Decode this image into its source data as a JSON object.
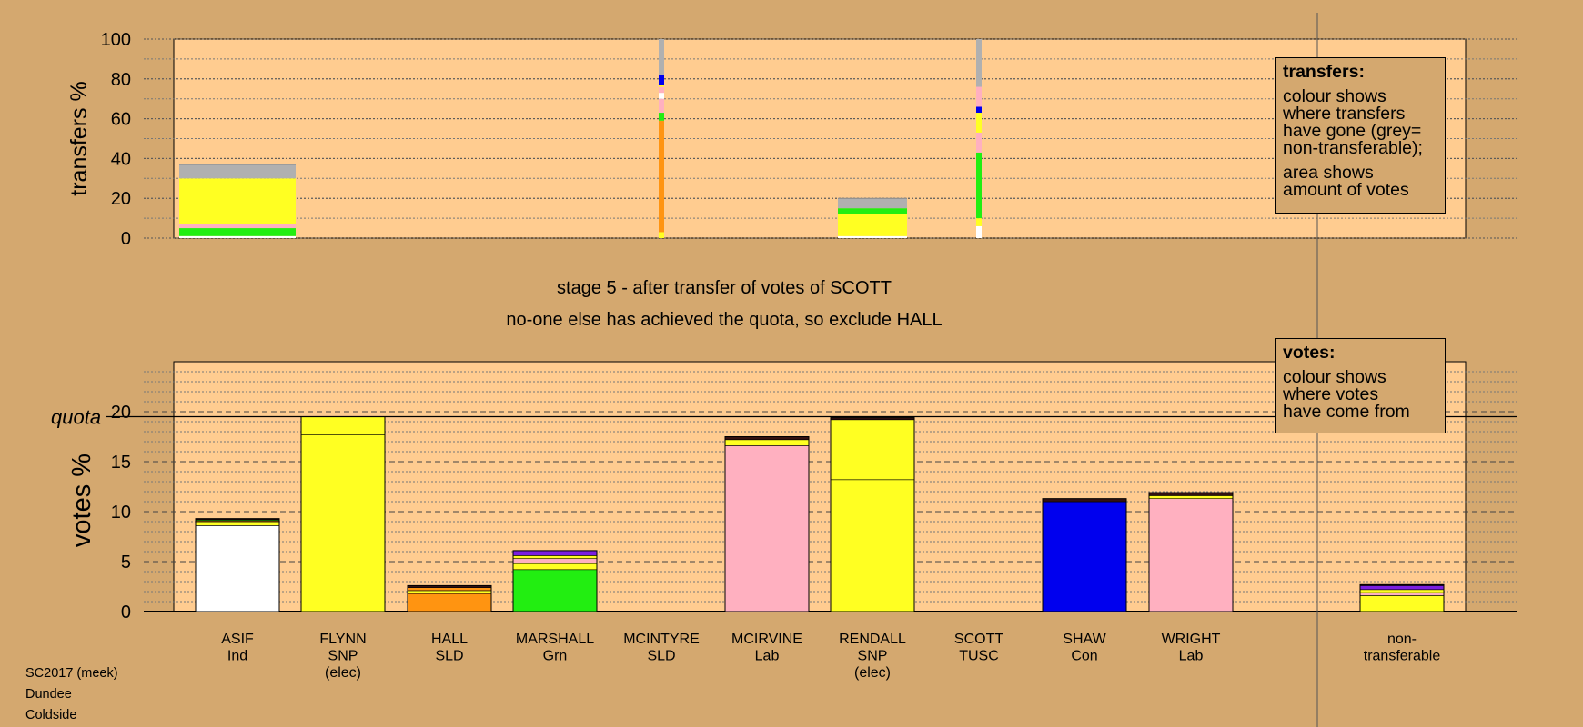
{
  "chart_data": [
    {
      "type": "bar",
      "title": "",
      "ylabel": "transfers %",
      "ylim": [
        0,
        100
      ],
      "yticks": [
        0,
        20,
        40,
        60,
        80,
        100
      ],
      "grid": true,
      "categories": [
        "ASIF",
        "FLYNN",
        "HALL",
        "MARSHALL",
        "MCINTYRE",
        "MCIRVINE",
        "RENDALL",
        "SCOTT",
        "SHAW",
        "WRIGHT",
        "non-transferable"
      ],
      "stacks": [
        {
          "category": "ASIF",
          "width": "wide",
          "segments": [
            {
              "color": "#ffffff",
              "value": 1
            },
            {
              "color": "#22ee11",
              "value": 4
            },
            {
              "color": "#ffb0c0",
              "value": 2
            },
            {
              "color": "#ffff22",
              "value": 23
            },
            {
              "color": "#b0b0b0",
              "value": 7
            }
          ]
        },
        {
          "category": "MCINTYRE",
          "width": "thin",
          "segments": [
            {
              "color": "#ffff22",
              "value": 3
            },
            {
              "color": "#ff9411",
              "value": 56
            },
            {
              "color": "#22ee11",
              "value": 4
            },
            {
              "color": "#ffb0c0",
              "value": 7
            },
            {
              "color": "#ffffff",
              "value": 3
            },
            {
              "color": "#ffb0c0",
              "value": 3
            },
            {
              "color": "#ffff22",
              "value": 1
            },
            {
              "color": "#0000ee",
              "value": 5
            },
            {
              "color": "#b0b0b0",
              "value": 18
            }
          ]
        },
        {
          "category": "RENDALL",
          "width": "wide",
          "segments": [
            {
              "color": "#ffffff",
              "value": 1
            },
            {
              "color": "#ffff22",
              "value": 11
            },
            {
              "color": "#22ee11",
              "value": 3
            },
            {
              "color": "#b0b0b0",
              "value": 5
            }
          ]
        },
        {
          "category": "SCOTT",
          "width": "thin",
          "segments": [
            {
              "color": "#ffffff",
              "value": 6
            },
            {
              "color": "#ffff22",
              "value": 4
            },
            {
              "color": "#22ee11",
              "value": 33
            },
            {
              "color": "#ffb0c0",
              "value": 10
            },
            {
              "color": "#ffff22",
              "value": 10
            },
            {
              "color": "#0000ee",
              "value": 3
            },
            {
              "color": "#ffb0c0",
              "value": 10
            },
            {
              "color": "#b0b0b0",
              "value": 24
            }
          ]
        }
      ]
    },
    {
      "type": "bar",
      "title": "",
      "ylabel": "votes %",
      "ylim": [
        0,
        25
      ],
      "yticks": [
        0,
        5,
        10,
        15,
        20
      ],
      "quota": 19.5,
      "quota_label": "quota",
      "grid": true,
      "categories": [
        "ASIF",
        "FLYNN",
        "HALL",
        "MARSHALL",
        "MCINTYRE",
        "MCIRVINE",
        "RENDALL",
        "SCOTT",
        "SHAW",
        "WRIGHT",
        "non-transferable"
      ],
      "labels": [
        [
          "ASIF",
          "Ind"
        ],
        [
          "FLYNN",
          "SNP",
          "(elec)"
        ],
        [
          "HALL",
          "SLD"
        ],
        [
          "MARSHALL",
          "Grn"
        ],
        [
          "MCINTYRE",
          "SLD"
        ],
        [
          "MCIRVINE",
          "Lab"
        ],
        [
          "RENDALL",
          "SNP",
          "(elec)"
        ],
        [
          "SCOTT",
          "TUSC"
        ],
        [
          "SHAW",
          "Con"
        ],
        [
          "WRIGHT",
          "Lab"
        ],
        [
          "non-",
          "transferable"
        ]
      ],
      "stacks": [
        [
          {
            "color": "#ffffff",
            "value": 8.6
          },
          {
            "color": "#ffff22",
            "value": 0.4
          },
          {
            "color": "#ff9411",
            "value": 0.1
          },
          {
            "color": "#22ee11",
            "value": 0.1
          },
          {
            "color": "#331111",
            "value": 0.1
          }
        ],
        [
          {
            "color": "#ffff22",
            "value": 17.7
          },
          {
            "color": "#ffff22",
            "value": 1.8
          }
        ],
        [
          {
            "color": "#ff9411",
            "value": 1.8
          },
          {
            "color": "#ffff22",
            "value": 0.3
          },
          {
            "color": "#ff9411",
            "value": 0.3
          },
          {
            "color": "#331111",
            "value": 0.2
          }
        ],
        [
          {
            "color": "#22ee11",
            "value": 4.2
          },
          {
            "color": "#ffff22",
            "value": 0.6
          },
          {
            "color": "#ffb0c0",
            "value": 0.5
          },
          {
            "color": "#ffff22",
            "value": 0.3
          },
          {
            "color": "#7b1fe0",
            "value": 0.5
          }
        ],
        [],
        [
          {
            "color": "#ffb0c0",
            "value": 16.6
          },
          {
            "color": "#ffff22",
            "value": 0.6
          },
          {
            "color": "#331111",
            "value": 0.3
          }
        ],
        [
          {
            "color": "#ffff22",
            "value": 13.2
          },
          {
            "color": "#ffff22",
            "value": 6.0
          },
          {
            "color": "#331111",
            "value": 0.2
          }
        ],
        [],
        [
          {
            "color": "#0000ee",
            "value": 11.0
          },
          {
            "color": "#331111",
            "value": 0.3
          }
        ],
        [
          {
            "color": "#ffb0c0",
            "value": 11.3
          },
          {
            "color": "#ffff22",
            "value": 0.3
          },
          {
            "color": "#331111",
            "value": 0.3
          }
        ],
        [
          {
            "color": "#ffff22",
            "value": 1.6
          },
          {
            "color": "#ffb0c0",
            "value": 0.3
          },
          {
            "color": "#ffff22",
            "value": 0.3
          },
          {
            "color": "#7b1fe0",
            "value": 0.4
          },
          {
            "color": "#331111",
            "value": 0.1
          }
        ]
      ]
    }
  ],
  "stage_text": {
    "line1": "stage 5 - after transfer of votes of SCOTT",
    "line2": "no-one else has achieved the quota, so exclude HALL"
  },
  "legend_transfers": {
    "heading": "transfers:",
    "lines": [
      "colour shows",
      "where transfers",
      "have gone (grey=",
      "non-transferable);"
    ],
    "lines2": [
      "area shows",
      "amount of votes"
    ]
  },
  "legend_votes": {
    "heading": "votes:",
    "lines": [
      "colour shows",
      "where votes",
      "have come from"
    ]
  },
  "footer": {
    "line1": "SC2017 (meek)",
    "line2": "Dundee",
    "line3": "Coldside"
  },
  "colors": {
    "background": "#d4a86f",
    "plot_area": "#ffcc90",
    "grid": "#777777"
  }
}
